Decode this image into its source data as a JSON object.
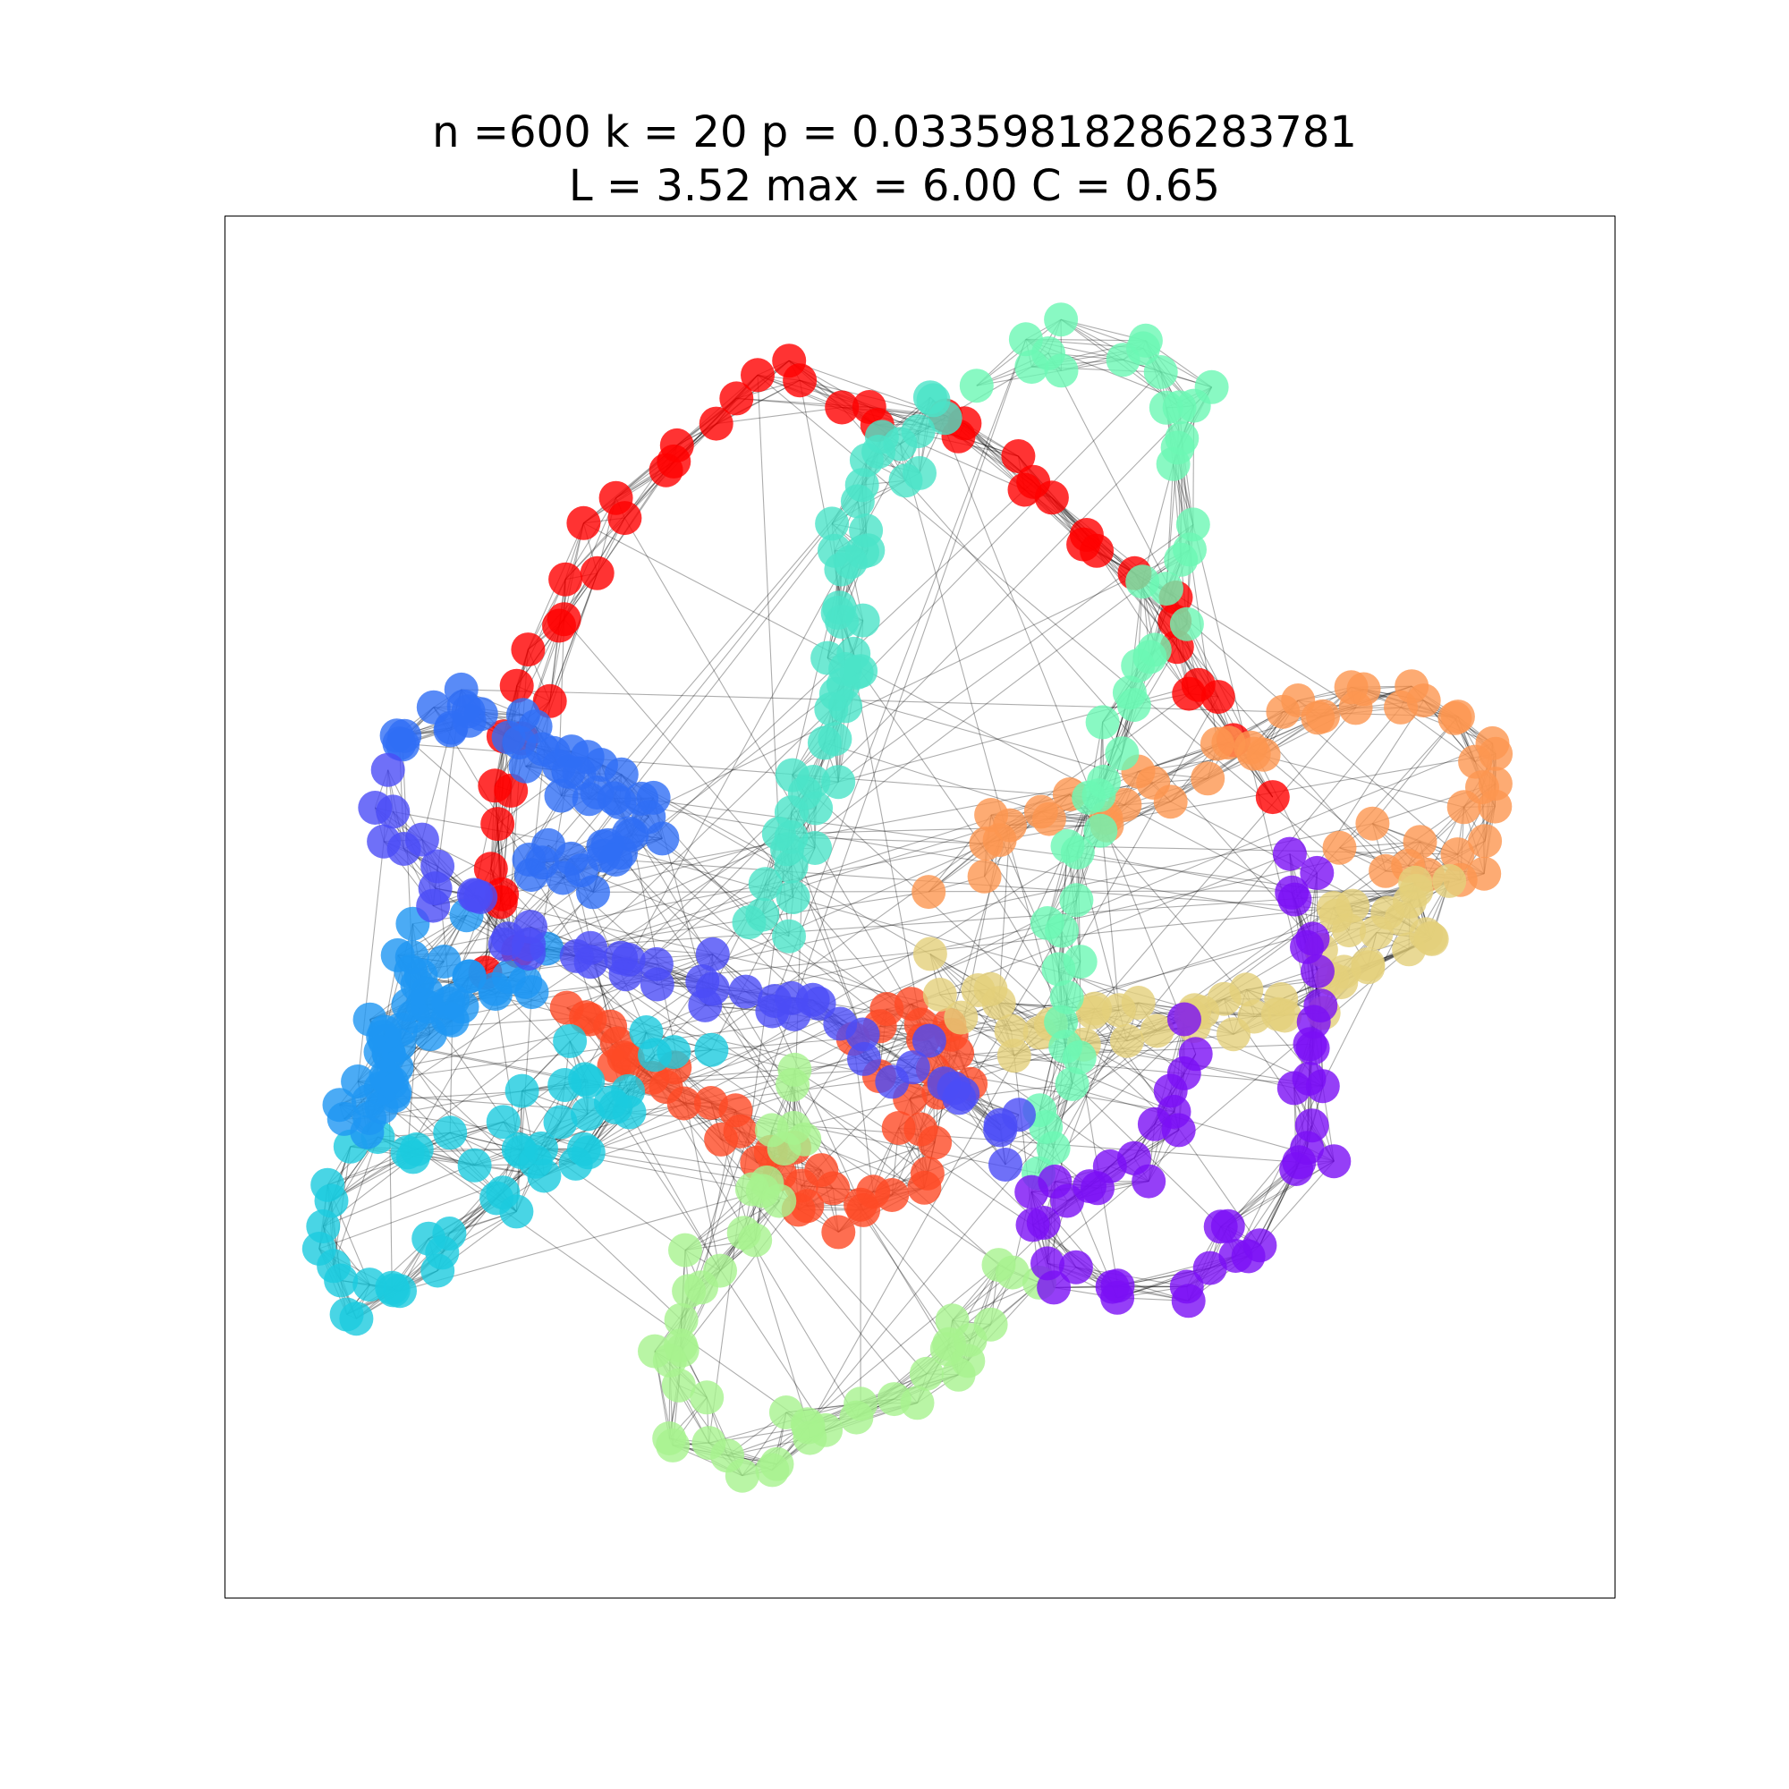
{
  "figure": {
    "title_line_1": "n =600 k = 20 p = 0.03359818286283781",
    "title_line_2": "L = 3.52 max = 6.00 C = 0.65"
  },
  "graph": {
    "node_count": 600,
    "community_count": 12,
    "edge_color": "#000000",
    "node_alpha": 0.8,
    "colormap": "rainbow",
    "communities": [
      {
        "name": "red",
        "color": "#ff0000"
      },
      {
        "name": "orange-red",
        "color": "#fe4a26"
      },
      {
        "name": "orange",
        "color": "#fd9650"
      },
      {
        "name": "tan",
        "color": "#e3cf7a"
      },
      {
        "name": "light-green",
        "color": "#a8f28f"
      },
      {
        "name": "aquamarine",
        "color": "#6cf8b4"
      },
      {
        "name": "turquoise",
        "color": "#4be3c8"
      },
      {
        "name": "cyan",
        "color": "#1ccbdf"
      },
      {
        "name": "azure",
        "color": "#1e96f2"
      },
      {
        "name": "blue",
        "color": "#2f6ef5"
      },
      {
        "name": "indigo",
        "color": "#4b4cf6"
      },
      {
        "name": "violet",
        "color": "#7a0ff5"
      }
    ]
  }
}
